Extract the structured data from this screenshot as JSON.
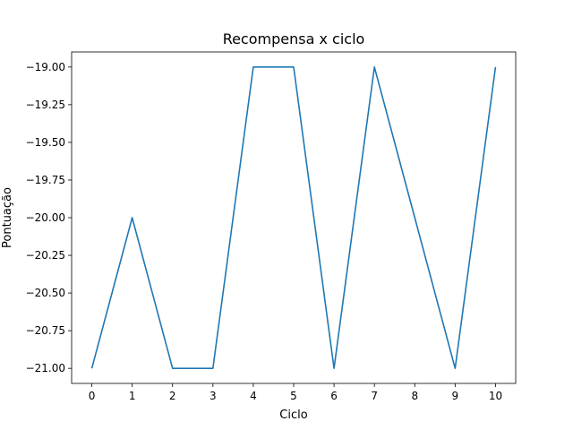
{
  "chart_data": {
    "type": "line",
    "title": "Recompensa x ciclo",
    "xlabel": "Ciclo",
    "ylabel": "Pontuação",
    "x": [
      0,
      1,
      2,
      3,
      4,
      5,
      6,
      7,
      8,
      9,
      10
    ],
    "series": [
      {
        "values": [
          -21.0,
          -20.0,
          -21.0,
          -21.0,
          -19.0,
          -19.0,
          -21.0,
          -19.0,
          -20.0,
          -21.0,
          -19.0
        ]
      }
    ],
    "xlim": [
      -0.5,
      10.5
    ],
    "ylim": [
      -21.1,
      -18.9
    ],
    "xticks": [
      0,
      1,
      2,
      3,
      4,
      5,
      6,
      7,
      8,
      9,
      10
    ],
    "xtick_labels": [
      "0",
      "1",
      "2",
      "3",
      "4",
      "5",
      "6",
      "7",
      "8",
      "9",
      "10"
    ],
    "yticks": [
      -19.0,
      -19.25,
      -19.5,
      -19.75,
      -20.0,
      -20.25,
      -20.5,
      -20.75,
      -21.0
    ],
    "ytick_labels": [
      "−19.00",
      "−19.25",
      "−19.50",
      "−19.75",
      "−20.00",
      "−20.25",
      "−20.50",
      "−20.75",
      "−21.00"
    ],
    "grid": false,
    "legend": "none",
    "line_color": "#1f77b4"
  }
}
